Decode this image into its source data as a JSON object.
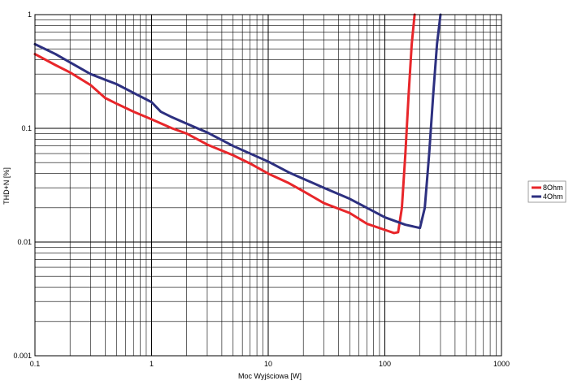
{
  "chart_data": {
    "type": "line",
    "xlabel": "Moc Wyjściowa [W]",
    "ylabel": "THD+N [%]",
    "x_scale": "log",
    "y_scale": "log",
    "xlim": [
      0.1,
      1000
    ],
    "ylim": [
      0.001,
      1
    ],
    "x_tick_labels": [
      "0.1",
      "1",
      "10",
      "100",
      "1000"
    ],
    "y_tick_labels": [
      "0.001",
      "0.01",
      "0.1",
      "1"
    ],
    "grid": true,
    "legend_position": "right",
    "series": [
      {
        "name": "8Ohm",
        "color": "#e8262a",
        "x": [
          0.1,
          0.15,
          0.2,
          0.3,
          0.4,
          0.5,
          0.7,
          1,
          1.5,
          2,
          3,
          5,
          7,
          10,
          15,
          20,
          30,
          50,
          70,
          100,
          120,
          130,
          140,
          150,
          160,
          170,
          180
        ],
        "y": [
          0.45,
          0.36,
          0.31,
          0.24,
          0.185,
          0.165,
          0.14,
          0.12,
          0.1,
          0.09,
          0.072,
          0.058,
          0.049,
          0.04,
          0.033,
          0.028,
          0.022,
          0.018,
          0.0145,
          0.0128,
          0.012,
          0.0122,
          0.02,
          0.06,
          0.2,
          0.55,
          1
        ]
      },
      {
        "name": "4Ohm",
        "color": "#2d3080",
        "x": [
          0.1,
          0.15,
          0.2,
          0.3,
          0.5,
          0.7,
          1,
          1.2,
          1.5,
          2,
          3,
          5,
          7,
          10,
          15,
          20,
          30,
          50,
          70,
          100,
          150,
          200,
          220,
          240,
          260,
          280,
          300
        ],
        "y": [
          0.55,
          0.45,
          0.38,
          0.3,
          0.245,
          0.205,
          0.17,
          0.14,
          0.125,
          0.11,
          0.092,
          0.07,
          0.06,
          0.051,
          0.041,
          0.036,
          0.03,
          0.024,
          0.02,
          0.0165,
          0.0142,
          0.0133,
          0.02,
          0.06,
          0.2,
          0.55,
          1
        ]
      }
    ]
  }
}
